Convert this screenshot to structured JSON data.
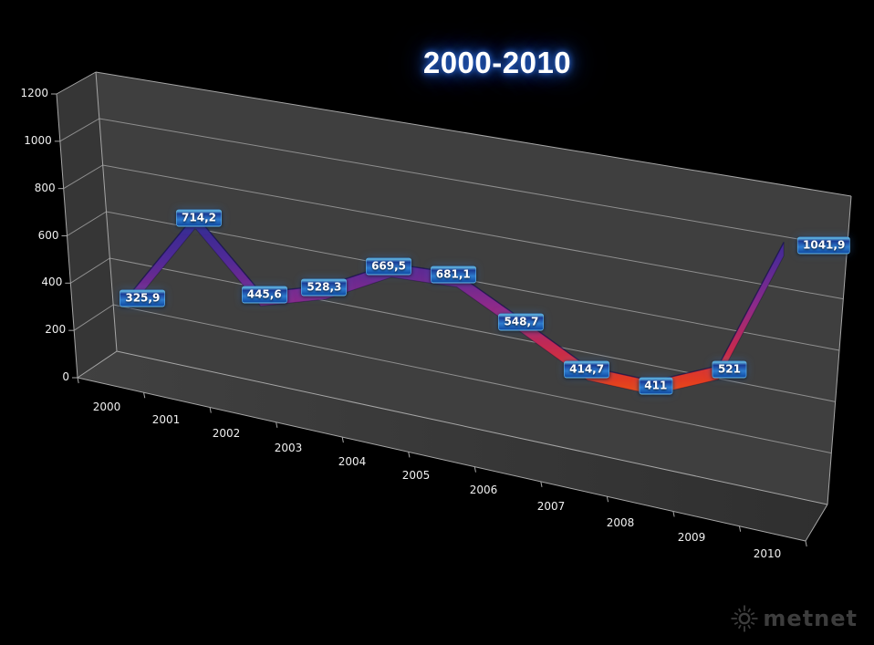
{
  "title": "2000-2010",
  "logo": {
    "icon": "sun-icon",
    "text": "metnet"
  },
  "colors": {
    "background": "#000000",
    "back_wall": "#3f3f3f",
    "side_wall": "#363636",
    "floor_left": "#414141",
    "floor_right": "#2f2f2f",
    "gridline": "#8f8f8f",
    "edge": "#a6a6a6",
    "title_glow": "#2a63d4",
    "label_box_blue": "#2e7ccf",
    "logo_gray": "#3d3d3d",
    "ribbon_gradient": [
      "#2b2b8f",
      "#4f2a96",
      "#8c2a8a",
      "#c22953",
      "#e23b22",
      "#f26a07"
    ]
  },
  "chart_data": {
    "type": "line",
    "style": "3d-ribbon",
    "title": "2000-2010",
    "categories": [
      "2000",
      "2001",
      "2002",
      "2003",
      "2004",
      "2005",
      "2006",
      "2007",
      "2008",
      "2009",
      "2010"
    ],
    "series": [
      {
        "name": "2000-2010",
        "values": [
          325.9,
          714.2,
          445.6,
          528.3,
          669.5,
          681.1,
          548.7,
          414.7,
          411,
          521,
          1041.9
        ]
      }
    ],
    "value_labels": [
      "325,9",
      "714,2",
      "445,6",
      "528,3",
      "669,5",
      "681,1",
      "548,7",
      "414,7",
      "411",
      "521",
      "1041,9"
    ],
    "y_ticks": [
      "0",
      "200",
      "400",
      "600",
      "800",
      "1000",
      "1200"
    ],
    "ylim": [
      0,
      1200
    ],
    "y_tick_step": 200,
    "xlabel": "",
    "ylabel": "",
    "grid": true,
    "legend": "none",
    "data_labels_visible": true
  }
}
